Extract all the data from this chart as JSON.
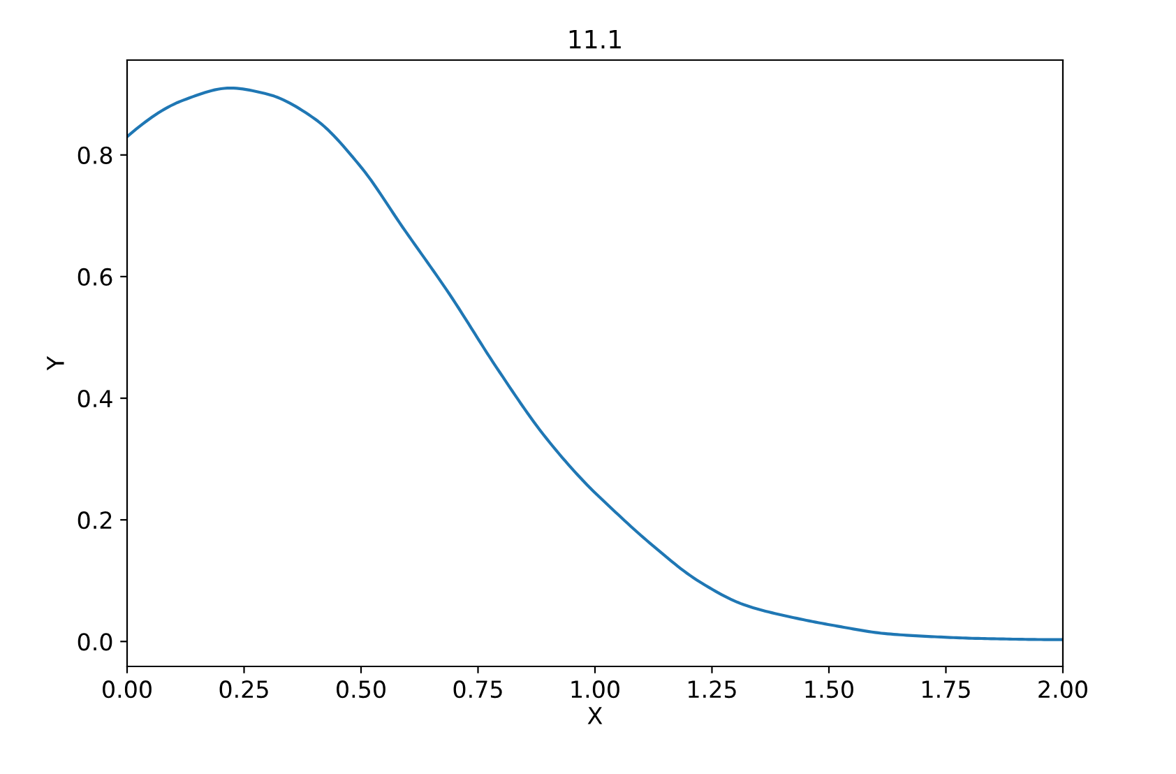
{
  "chart_data": {
    "type": "line",
    "title": "11.1",
    "xlabel": "X",
    "ylabel": "Y",
    "series": [
      {
        "color": "#1f77b4",
        "x": [
          0,
          0.12,
          0.22,
          0.3,
          0.4,
          0.5,
          0.59,
          0.69,
          0.79,
          0.89,
          0.98,
          1.02,
          1.12,
          1.22,
          1.32,
          1.42,
          1.52,
          1.62,
          1.72,
          1.82,
          2.0
        ],
        "values": [
          0.83,
          0.89,
          0.91,
          0.9,
          0.86,
          0.78,
          0.68,
          0.57,
          0.45,
          0.34,
          0.26,
          0.23,
          0.16,
          0.1,
          0.06,
          0.04,
          0.025,
          0.013,
          0.008,
          0.005,
          0.003
        ]
      }
    ],
    "xlim": [
      0,
      2
    ],
    "ylim": [
      -0.041,
      0.956
    ],
    "xticks": [
      {
        "value": 0,
        "label": "0.00"
      },
      {
        "value": 0.25,
        "label": "0.25"
      },
      {
        "value": 0.5,
        "label": "0.50"
      },
      {
        "value": 0.75,
        "label": "0.75"
      },
      {
        "value": 1,
        "label": "1.00"
      },
      {
        "value": 1.25,
        "label": "1.25"
      },
      {
        "value": 1.5,
        "label": "1.50"
      },
      {
        "value": 1.75,
        "label": "1.75"
      },
      {
        "value": 2,
        "label": "2.00"
      }
    ],
    "yticks": [
      {
        "value": 0,
        "label": "0.0"
      },
      {
        "value": 0.2,
        "label": "0.2"
      },
      {
        "value": 0.4,
        "label": "0.4"
      },
      {
        "value": 0.6,
        "label": "0.6"
      },
      {
        "value": 0.8,
        "label": "0.8"
      }
    ],
    "grid": false,
    "legend": false
  }
}
